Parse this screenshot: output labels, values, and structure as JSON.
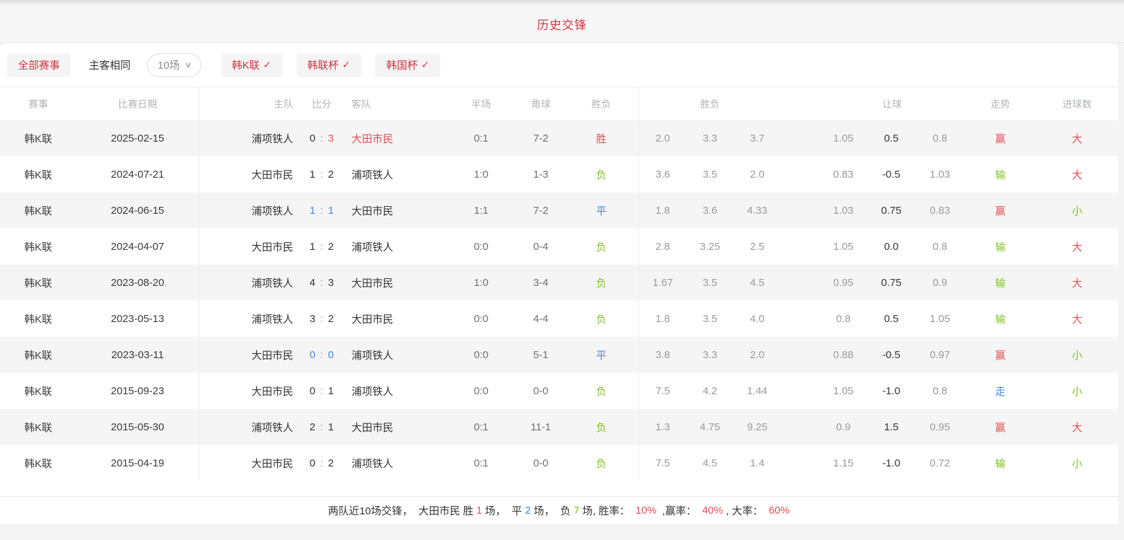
{
  "page": {
    "title": "历史交锋"
  },
  "filters": {
    "all_matches": "全部赛事",
    "same_home_away": "主客相同",
    "match_count": "10场",
    "chevron_icon": "∨",
    "check_icon": "✓",
    "leagues": [
      {
        "label": "韩K联"
      },
      {
        "label": "韩联杯"
      },
      {
        "label": "韩国杯"
      }
    ]
  },
  "table": {
    "score_separator": ":",
    "headers": {
      "league": "赛事",
      "date": "比赛日期",
      "home": "主队",
      "score": "比分",
      "away": "客队",
      "half": "半场",
      "corner": "角球",
      "result": "胜负",
      "odds_group": "胜负",
      "handicap_group": "让球",
      "trend": "走势",
      "goals": "进球数"
    },
    "rows": [
      {
        "league": "韩K联",
        "date": "2025-02-15",
        "home": "浦项铁人",
        "home_color": "dark",
        "score_home": "0",
        "score_home_color": "dark",
        "score_away": "3",
        "score_away_color": "red",
        "away": "大田市民",
        "away_color": "red",
        "half": "0:1",
        "corner": "7-2",
        "result": "胜",
        "result_color": "red",
        "odds": [
          "2.0",
          "3.3",
          "3.7"
        ],
        "handicap": [
          "1.05",
          "0.5",
          "0.8"
        ],
        "trend": "赢",
        "trend_color": "red",
        "goals": "大",
        "goals_color": "red"
      },
      {
        "league": "韩K联",
        "date": "2024-07-21",
        "home": "大田市民",
        "home_color": "dark",
        "score_home": "1",
        "score_home_color": "dark",
        "score_away": "2",
        "score_away_color": "dark",
        "away": "浦项铁人",
        "away_color": "dark",
        "half": "1:0",
        "corner": "1-3",
        "result": "负",
        "result_color": "green",
        "odds": [
          "3.6",
          "3.5",
          "2.0"
        ],
        "handicap": [
          "0.83",
          "-0.5",
          "1.03"
        ],
        "trend": "输",
        "trend_color": "green",
        "goals": "大",
        "goals_color": "red"
      },
      {
        "league": "韩K联",
        "date": "2024-06-15",
        "home": "浦项铁人",
        "home_color": "dark",
        "score_home": "1",
        "score_home_color": "blue",
        "score_away": "1",
        "score_away_color": "blue",
        "away": "大田市民",
        "away_color": "dark",
        "half": "1:1",
        "corner": "7-2",
        "result": "平",
        "result_color": "blue",
        "odds": [
          "1.8",
          "3.6",
          "4.33"
        ],
        "handicap": [
          "1.03",
          "0.75",
          "0.83"
        ],
        "trend": "赢",
        "trend_color": "red",
        "goals": "小",
        "goals_color": "green"
      },
      {
        "league": "韩K联",
        "date": "2024-04-07",
        "home": "大田市民",
        "home_color": "dark",
        "score_home": "1",
        "score_home_color": "dark",
        "score_away": "2",
        "score_away_color": "dark",
        "away": "浦项铁人",
        "away_color": "dark",
        "half": "0:0",
        "corner": "0-4",
        "result": "负",
        "result_color": "green",
        "odds": [
          "2.8",
          "3.25",
          "2.5"
        ],
        "handicap": [
          "1.05",
          "0.0",
          "0.8"
        ],
        "trend": "输",
        "trend_color": "green",
        "goals": "大",
        "goals_color": "red"
      },
      {
        "league": "韩K联",
        "date": "2023-08-20",
        "home": "浦项铁人",
        "home_color": "dark",
        "score_home": "4",
        "score_home_color": "dark",
        "score_away": "3",
        "score_away_color": "dark",
        "away": "大田市民",
        "away_color": "dark",
        "half": "1:0",
        "corner": "3-4",
        "result": "负",
        "result_color": "green",
        "odds": [
          "1.67",
          "3.5",
          "4.5"
        ],
        "handicap": [
          "0.95",
          "0.75",
          "0.9"
        ],
        "trend": "输",
        "trend_color": "green",
        "goals": "大",
        "goals_color": "red"
      },
      {
        "league": "韩K联",
        "date": "2023-05-13",
        "home": "浦项铁人",
        "home_color": "dark",
        "score_home": "3",
        "score_home_color": "dark",
        "score_away": "2",
        "score_away_color": "dark",
        "away": "大田市民",
        "away_color": "dark",
        "half": "0:0",
        "corner": "4-4",
        "result": "负",
        "result_color": "green",
        "odds": [
          "1.8",
          "3.5",
          "4.0"
        ],
        "handicap": [
          "0.8",
          "0.5",
          "1.05"
        ],
        "trend": "输",
        "trend_color": "green",
        "goals": "大",
        "goals_color": "red"
      },
      {
        "league": "韩K联",
        "date": "2023-03-11",
        "home": "大田市民",
        "home_color": "dark",
        "score_home": "0",
        "score_home_color": "blue",
        "score_away": "0",
        "score_away_color": "blue",
        "away": "浦项铁人",
        "away_color": "dark",
        "half": "0:0",
        "corner": "5-1",
        "result": "平",
        "result_color": "blue",
        "odds": [
          "3.8",
          "3.3",
          "2.0"
        ],
        "handicap": [
          "0.88",
          "-0.5",
          "0.97"
        ],
        "trend": "赢",
        "trend_color": "red",
        "goals": "小",
        "goals_color": "green"
      },
      {
        "league": "韩K联",
        "date": "2015-09-23",
        "home": "大田市民",
        "home_color": "dark",
        "score_home": "0",
        "score_home_color": "dark",
        "score_away": "1",
        "score_away_color": "dark",
        "away": "浦项铁人",
        "away_color": "dark",
        "half": "0:0",
        "corner": "0-0",
        "result": "负",
        "result_color": "green",
        "odds": [
          "7.5",
          "4.2",
          "1.44"
        ],
        "handicap": [
          "1.05",
          "-1.0",
          "0.8"
        ],
        "trend": "走",
        "trend_color": "blue",
        "goals": "小",
        "goals_color": "green"
      },
      {
        "league": "韩K联",
        "date": "2015-05-30",
        "home": "浦项铁人",
        "home_color": "dark",
        "score_home": "2",
        "score_home_color": "dark",
        "score_away": "1",
        "score_away_color": "dark",
        "away": "大田市民",
        "away_color": "dark",
        "half": "0:1",
        "corner": "11-1",
        "result": "负",
        "result_color": "green",
        "odds": [
          "1.3",
          "4.75",
          "9.25"
        ],
        "handicap": [
          "0.9",
          "1.5",
          "0.95"
        ],
        "trend": "赢",
        "trend_color": "red",
        "goals": "大",
        "goals_color": "red"
      },
      {
        "league": "韩K联",
        "date": "2015-04-19",
        "home": "大田市民",
        "home_color": "dark",
        "score_home": "0",
        "score_home_color": "dark",
        "score_away": "2",
        "score_away_color": "dark",
        "away": "浦项铁人",
        "away_color": "dark",
        "half": "0:1",
        "corner": "0-0",
        "result": "负",
        "result_color": "green",
        "odds": [
          "7.5",
          "4.5",
          "1.4"
        ],
        "handicap": [
          "1.15",
          "-1.0",
          "0.72"
        ],
        "trend": "输",
        "trend_color": "green",
        "goals": "小",
        "goals_color": "green"
      }
    ]
  },
  "summary": {
    "segments": [
      {
        "text": "两队近10场交锋，  大田市民 胜 ",
        "color": "dark"
      },
      {
        "text": "1",
        "color": "red"
      },
      {
        "text": " 场，  平 ",
        "color": "dark"
      },
      {
        "text": "2",
        "color": "blue"
      },
      {
        "text": " 场，  负 ",
        "color": "dark"
      },
      {
        "text": "7",
        "color": "green"
      },
      {
        "text": " 场, 胜率：  ",
        "color": "dark"
      },
      {
        "text": "10%",
        "color": "red"
      },
      {
        "text": "  ,赢率：  ",
        "color": "dark"
      },
      {
        "text": "40%",
        "color": "red"
      },
      {
        "text": " , 大率：  ",
        "color": "dark"
      },
      {
        "text": "60%",
        "color": "red"
      }
    ]
  },
  "colors": {
    "accent_red": "#d6363f",
    "win_red": "#e34d54",
    "loss_green": "#83c127",
    "draw_blue": "#3f87e0",
    "text_dark": "#333333",
    "text_gray": "#999999",
    "stripe_bg": "#f5f5f6"
  }
}
